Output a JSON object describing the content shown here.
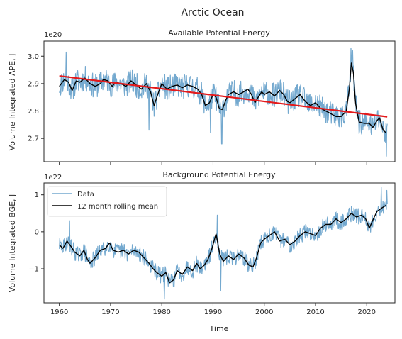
{
  "figure": {
    "suptitle": "Arctic Ocean"
  },
  "chart_data": [
    {
      "type": "line",
      "title": "Available Potential Energy",
      "xlabel": "",
      "ylabel": "Volume Integrated APE, J",
      "offset_text": "1e20",
      "xlim": [
        1957,
        2025.5
      ],
      "ylim": [
        2.615,
        3.055
      ],
      "yscale_factor": "1e20",
      "xticks": [
        1960,
        1970,
        1980,
        1990,
        2000,
        2010,
        2020
      ],
      "yticks": [
        2.7,
        2.8,
        2.9,
        3.0
      ],
      "ytick_labels": [
        "2.7",
        "2.8",
        "2.9",
        "3.0"
      ],
      "grid": false,
      "colors": {
        "data": "#74a9cf",
        "rolling": "#000000",
        "trend": "#e41a1c"
      },
      "rolling_anchors": [
        [
          1960.0,
          2.89
        ],
        [
          1961.0,
          2.915
        ],
        [
          1961.8,
          2.905
        ],
        [
          1962.5,
          2.875
        ],
        [
          1963.3,
          2.91
        ],
        [
          1964.0,
          2.905
        ],
        [
          1965.0,
          2.92
        ],
        [
          1966.0,
          2.9
        ],
        [
          1967.0,
          2.89
        ],
        [
          1968.0,
          2.9
        ],
        [
          1968.6,
          2.915
        ],
        [
          1969.5,
          2.91
        ],
        [
          1970.3,
          2.89
        ],
        [
          1971.0,
          2.905
        ],
        [
          1972.0,
          2.9
        ],
        [
          1973.0,
          2.89
        ],
        [
          1974.0,
          2.91
        ],
        [
          1975.0,
          2.895
        ],
        [
          1976.0,
          2.88
        ],
        [
          1977.0,
          2.9
        ],
        [
          1977.8,
          2.87
        ],
        [
          1978.5,
          2.82
        ],
        [
          1979.2,
          2.86
        ],
        [
          1980.0,
          2.9
        ],
        [
          1981.0,
          2.88
        ],
        [
          1982.0,
          2.89
        ],
        [
          1983.0,
          2.895
        ],
        [
          1984.0,
          2.885
        ],
        [
          1985.0,
          2.895
        ],
        [
          1986.0,
          2.89
        ],
        [
          1987.0,
          2.88
        ],
        [
          1987.8,
          2.86
        ],
        [
          1988.5,
          2.82
        ],
        [
          1989.3,
          2.83
        ],
        [
          1990.0,
          2.86
        ],
        [
          1990.6,
          2.85
        ],
        [
          1991.2,
          2.81
        ],
        [
          1991.8,
          2.805
        ],
        [
          1992.5,
          2.84
        ],
        [
          1993.0,
          2.86
        ],
        [
          1994.0,
          2.87
        ],
        [
          1995.0,
          2.86
        ],
        [
          1996.0,
          2.87
        ],
        [
          1996.8,
          2.88
        ],
        [
          1997.5,
          2.86
        ],
        [
          1998.2,
          2.83
        ],
        [
          1998.8,
          2.85
        ],
        [
          1999.5,
          2.87
        ],
        [
          2000.0,
          2.86
        ],
        [
          2001.0,
          2.87
        ],
        [
          2002.0,
          2.855
        ],
        [
          2003.0,
          2.875
        ],
        [
          2003.8,
          2.86
        ],
        [
          2004.5,
          2.835
        ],
        [
          2005.0,
          2.83
        ],
        [
          2006.0,
          2.845
        ],
        [
          2007.0,
          2.86
        ],
        [
          2008.0,
          2.835
        ],
        [
          2009.0,
          2.82
        ],
        [
          2010.0,
          2.83
        ],
        [
          2011.0,
          2.81
        ],
        [
          2012.0,
          2.8
        ],
        [
          2013.0,
          2.79
        ],
        [
          2014.0,
          2.78
        ],
        [
          2015.0,
          2.78
        ],
        [
          2016.0,
          2.8
        ],
        [
          2016.6,
          2.88
        ],
        [
          2017.0,
          2.975
        ],
        [
          2017.4,
          2.94
        ],
        [
          2017.8,
          2.83
        ],
        [
          2018.5,
          2.76
        ],
        [
          2019.5,
          2.755
        ],
        [
          2020.5,
          2.755
        ],
        [
          2021.2,
          2.74
        ],
        [
          2022.0,
          2.765
        ],
        [
          2022.5,
          2.775
        ],
        [
          2023.2,
          2.73
        ],
        [
          2023.8,
          2.72
        ]
      ],
      "series": [
        {
          "name": "Data",
          "kind": "raw",
          "noise_amplitude": 0.045,
          "noise_seed": 11,
          "spikes": [
            [
              1961.3,
              3.015
            ],
            [
              1977.5,
              2.73
            ],
            [
              1989.5,
              2.72
            ],
            [
              1991.7,
              2.68
            ],
            [
              2016.9,
              3.03
            ],
            [
              2017.2,
              3.02
            ],
            [
              2023.8,
              2.635
            ]
          ]
        },
        {
          "name": "12 month rolling mean",
          "kind": "rolling"
        },
        {
          "name": "",
          "kind": "trend",
          "x": [
            1960,
            2024
          ],
          "y": [
            2.928,
            2.779
          ]
        }
      ]
    },
    {
      "type": "line",
      "title": "Background Potential Energy",
      "xlabel": "Time",
      "ylabel": "Volume Integrated BGE, J",
      "offset_text": "1e22",
      "xlim": [
        1957,
        2025.5
      ],
      "ylim": [
        -1.92,
        1.32
      ],
      "yscale_factor": "1e22",
      "xticks": [
        1960,
        1970,
        1980,
        1990,
        2000,
        2010,
        2020
      ],
      "xtick_labels": [
        "1960",
        "1970",
        "1980",
        "1990",
        "2000",
        "2010",
        "2020"
      ],
      "yticks": [
        -1,
        0,
        1
      ],
      "ytick_labels": [
        "−1",
        "0",
        "1"
      ],
      "grid": false,
      "legend_placement": "upper-left",
      "colors": {
        "data": "#74a9cf",
        "rolling": "#000000"
      },
      "rolling_anchors": [
        [
          1960.0,
          -0.35
        ],
        [
          1960.7,
          -0.45
        ],
        [
          1961.5,
          -0.25
        ],
        [
          1962.3,
          -0.4
        ],
        [
          1963.0,
          -0.55
        ],
        [
          1964.0,
          -0.65
        ],
        [
          1964.8,
          -0.5
        ],
        [
          1965.5,
          -0.75
        ],
        [
          1966.0,
          -0.85
        ],
        [
          1967.0,
          -0.7
        ],
        [
          1968.0,
          -0.5
        ],
        [
          1969.0,
          -0.45
        ],
        [
          1969.8,
          -0.3
        ],
        [
          1970.5,
          -0.5
        ],
        [
          1971.5,
          -0.55
        ],
        [
          1972.5,
          -0.5
        ],
        [
          1973.5,
          -0.6
        ],
        [
          1974.5,
          -0.5
        ],
        [
          1975.5,
          -0.55
        ],
        [
          1976.5,
          -0.7
        ],
        [
          1977.5,
          -0.85
        ],
        [
          1978.3,
          -1.0
        ],
        [
          1979.0,
          -1.1
        ],
        [
          1980.0,
          -1.2
        ],
        [
          1980.8,
          -1.1
        ],
        [
          1981.5,
          -1.38
        ],
        [
          1982.3,
          -1.3
        ],
        [
          1983.0,
          -1.05
        ],
        [
          1984.0,
          -1.15
        ],
        [
          1985.0,
          -0.95
        ],
        [
          1986.0,
          -1.05
        ],
        [
          1986.8,
          -0.85
        ],
        [
          1987.5,
          -1.0
        ],
        [
          1988.3,
          -0.9
        ],
        [
          1989.0,
          -0.75
        ],
        [
          1989.8,
          -0.45
        ],
        [
          1990.6,
          -0.05
        ],
        [
          1991.3,
          -0.6
        ],
        [
          1992.0,
          -0.8
        ],
        [
          1993.0,
          -0.65
        ],
        [
          1994.0,
          -0.75
        ],
        [
          1995.0,
          -0.6
        ],
        [
          1996.0,
          -0.7
        ],
        [
          1997.0,
          -0.9
        ],
        [
          1997.8,
          -0.95
        ],
        [
          1998.5,
          -0.7
        ],
        [
          1999.3,
          -0.3
        ],
        [
          2000.0,
          -0.2
        ],
        [
          2001.0,
          -0.1
        ],
        [
          2002.0,
          0.0
        ],
        [
          2003.0,
          -0.25
        ],
        [
          2004.0,
          -0.2
        ],
        [
          2005.0,
          -0.35
        ],
        [
          2006.0,
          -0.25
        ],
        [
          2007.0,
          -0.1
        ],
        [
          2008.0,
          0.0
        ],
        [
          2009.0,
          -0.05
        ],
        [
          2010.0,
          -0.1
        ],
        [
          2011.0,
          0.1
        ],
        [
          2012.0,
          0.2
        ],
        [
          2013.0,
          0.2
        ],
        [
          2014.0,
          0.35
        ],
        [
          2015.0,
          0.25
        ],
        [
          2016.0,
          0.35
        ],
        [
          2017.0,
          0.5
        ],
        [
          2018.0,
          0.4
        ],
        [
          2019.0,
          0.45
        ],
        [
          2019.8,
          0.35
        ],
        [
          2020.5,
          0.1
        ],
        [
          2021.3,
          0.35
        ],
        [
          2022.0,
          0.55
        ],
        [
          2023.0,
          0.65
        ],
        [
          2023.8,
          0.72
        ]
      ],
      "series": [
        {
          "name": "Data",
          "kind": "raw",
          "noise_amplitude": 0.22,
          "noise_seed": 29,
          "spikes": [
            [
              1962.0,
              0.3
            ],
            [
              1980.5,
              -1.82
            ],
            [
              1990.8,
              0.45
            ],
            [
              1991.5,
              -1.6
            ],
            [
              2022.8,
              1.2
            ],
            [
              2023.9,
              1.12
            ]
          ]
        },
        {
          "name": "12 month rolling mean",
          "kind": "rolling"
        }
      ]
    }
  ],
  "legend": {
    "entries": [
      "Data",
      "12 month rolling mean"
    ]
  }
}
